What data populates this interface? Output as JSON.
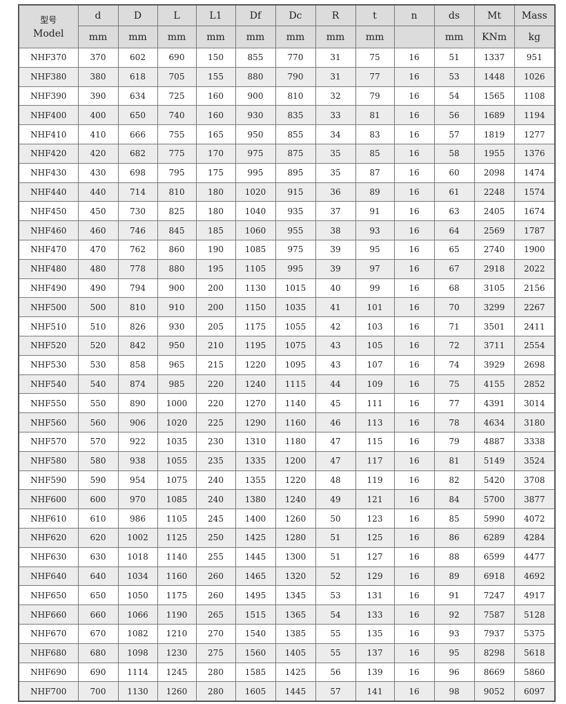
{
  "header": {
    "model_label_ko": "型号",
    "model_label": "Model",
    "columns": [
      "d",
      "D",
      "L",
      "L1",
      "Df",
      "Dc",
      "R",
      "t",
      "n",
      "ds",
      "Mt",
      "Mass"
    ],
    "units": [
      "mm",
      "mm",
      "mm",
      "mm",
      "mm",
      "mm",
      "mm",
      "mm",
      "",
      "mm",
      "KNm",
      "kg"
    ]
  },
  "rows": [
    [
      "NHF370",
      "370",
      "602",
      "690",
      "150",
      "855",
      "770",
      "31",
      "75",
      "16",
      "51",
      "1337",
      "951"
    ],
    [
      "NHF380",
      "380",
      "618",
      "705",
      "155",
      "880",
      "790",
      "31",
      "77",
      "16",
      "53",
      "1448",
      "1026"
    ],
    [
      "NHF390",
      "390",
      "634",
      "725",
      "160",
      "900",
      "810",
      "32",
      "79",
      "16",
      "54",
      "1565",
      "1108"
    ],
    [
      "NHF400",
      "400",
      "650",
      "740",
      "160",
      "930",
      "835",
      "33",
      "81",
      "16",
      "56",
      "1689",
      "1194"
    ],
    [
      "NHF410",
      "410",
      "666",
      "755",
      "165",
      "950",
      "855",
      "34",
      "83",
      "16",
      "57",
      "1819",
      "1277"
    ],
    [
      "NHF420",
      "420",
      "682",
      "775",
      "170",
      "975",
      "875",
      "35",
      "85",
      "16",
      "58",
      "1955",
      "1376"
    ],
    [
      "NHF430",
      "430",
      "698",
      "795",
      "175",
      "995",
      "895",
      "35",
      "87",
      "16",
      "60",
      "2098",
      "1474"
    ],
    [
      "NHF440",
      "440",
      "714",
      "810",
      "180",
      "1020",
      "915",
      "36",
      "89",
      "16",
      "61",
      "2248",
      "1574"
    ],
    [
      "NHF450",
      "450",
      "730",
      "825",
      "180",
      "1040",
      "935",
      "37",
      "91",
      "16",
      "63",
      "2405",
      "1674"
    ],
    [
      "NHF460",
      "460",
      "746",
      "845",
      "185",
      "1060",
      "955",
      "38",
      "93",
      "16",
      "64",
      "2569",
      "1787"
    ],
    [
      "NHF470",
      "470",
      "762",
      "860",
      "190",
      "1085",
      "975",
      "39",
      "95",
      "16",
      "65",
      "2740",
      "1900"
    ],
    [
      "NHF480",
      "480",
      "778",
      "880",
      "195",
      "1105",
      "995",
      "39",
      "97",
      "16",
      "67",
      "2918",
      "2022"
    ],
    [
      "NHF490",
      "490",
      "794",
      "900",
      "200",
      "1130",
      "1015",
      "40",
      "99",
      "16",
      "68",
      "3105",
      "2156"
    ],
    [
      "NHF500",
      "500",
      "810",
      "910",
      "200",
      "1150",
      "1035",
      "41",
      "101",
      "16",
      "70",
      "3299",
      "2267"
    ],
    [
      "NHF510",
      "510",
      "826",
      "930",
      "205",
      "1175",
      "1055",
      "42",
      "103",
      "16",
      "71",
      "3501",
      "2411"
    ],
    [
      "NHF520",
      "520",
      "842",
      "950",
      "210",
      "1195",
      "1075",
      "43",
      "105",
      "16",
      "72",
      "3711",
      "2554"
    ],
    [
      "NHF530",
      "530",
      "858",
      "965",
      "215",
      "1220",
      "1095",
      "43",
      "107",
      "16",
      "74",
      "3929",
      "2698"
    ],
    [
      "NHF540",
      "540",
      "874",
      "985",
      "220",
      "1240",
      "1115",
      "44",
      "109",
      "16",
      "75",
      "4155",
      "2852"
    ],
    [
      "NHF550",
      "550",
      "890",
      "1000",
      "220",
      "1270",
      "1140",
      "45",
      "111",
      "16",
      "77",
      "4391",
      "3014"
    ],
    [
      "NHF560",
      "560",
      "906",
      "1020",
      "225",
      "1290",
      "1160",
      "46",
      "113",
      "16",
      "78",
      "4634",
      "3180"
    ],
    [
      "NHF570",
      "570",
      "922",
      "1035",
      "230",
      "1310",
      "1180",
      "47",
      "115",
      "16",
      "79",
      "4887",
      "3338"
    ],
    [
      "NHF580",
      "580",
      "938",
      "1055",
      "235",
      "1335",
      "1200",
      "47",
      "117",
      "16",
      "81",
      "5149",
      "3524"
    ],
    [
      "NHF590",
      "590",
      "954",
      "1075",
      "240",
      "1355",
      "1220",
      "48",
      "119",
      "16",
      "82",
      "5420",
      "3708"
    ],
    [
      "NHF600",
      "600",
      "970",
      "1085",
      "240",
      "1380",
      "1240",
      "49",
      "121",
      "16",
      "84",
      "5700",
      "3877"
    ],
    [
      "NHF610",
      "610",
      "986",
      "1105",
      "245",
      "1400",
      "1260",
      "50",
      "123",
      "16",
      "85",
      "5990",
      "4072"
    ],
    [
      "NHF620",
      "620",
      "1002",
      "1125",
      "250",
      "1425",
      "1280",
      "51",
      "125",
      "16",
      "86",
      "6289",
      "4284"
    ],
    [
      "NHF630",
      "630",
      "1018",
      "1140",
      "255",
      "1445",
      "1300",
      "51",
      "127",
      "16",
      "88",
      "6599",
      "4477"
    ],
    [
      "NHF640",
      "640",
      "1034",
      "1160",
      "260",
      "1465",
      "1320",
      "52",
      "129",
      "16",
      "89",
      "6918",
      "4692"
    ],
    [
      "NHF650",
      "650",
      "1050",
      "1175",
      "260",
      "1495",
      "1345",
      "53",
      "131",
      "16",
      "91",
      "7247",
      "4917"
    ],
    [
      "NHF660",
      "660",
      "1066",
      "1190",
      "265",
      "1515",
      "1365",
      "54",
      "133",
      "16",
      "92",
      "7587",
      "5128"
    ],
    [
      "NHF670",
      "670",
      "1082",
      "1210",
      "270",
      "1540",
      "1385",
      "55",
      "135",
      "16",
      "93",
      "7937",
      "5375"
    ],
    [
      "NHF680",
      "680",
      "1098",
      "1230",
      "275",
      "1560",
      "1405",
      "55",
      "137",
      "16",
      "95",
      "8298",
      "5618"
    ],
    [
      "NHF690",
      "690",
      "1114",
      "1245",
      "280",
      "1585",
      "1425",
      "56",
      "139",
      "16",
      "96",
      "8669",
      "5860"
    ],
    [
      "NHF700",
      "700",
      "1130",
      "1260",
      "280",
      "1605",
      "1445",
      "57",
      "141",
      "16",
      "98",
      "9052",
      "6097"
    ]
  ]
}
